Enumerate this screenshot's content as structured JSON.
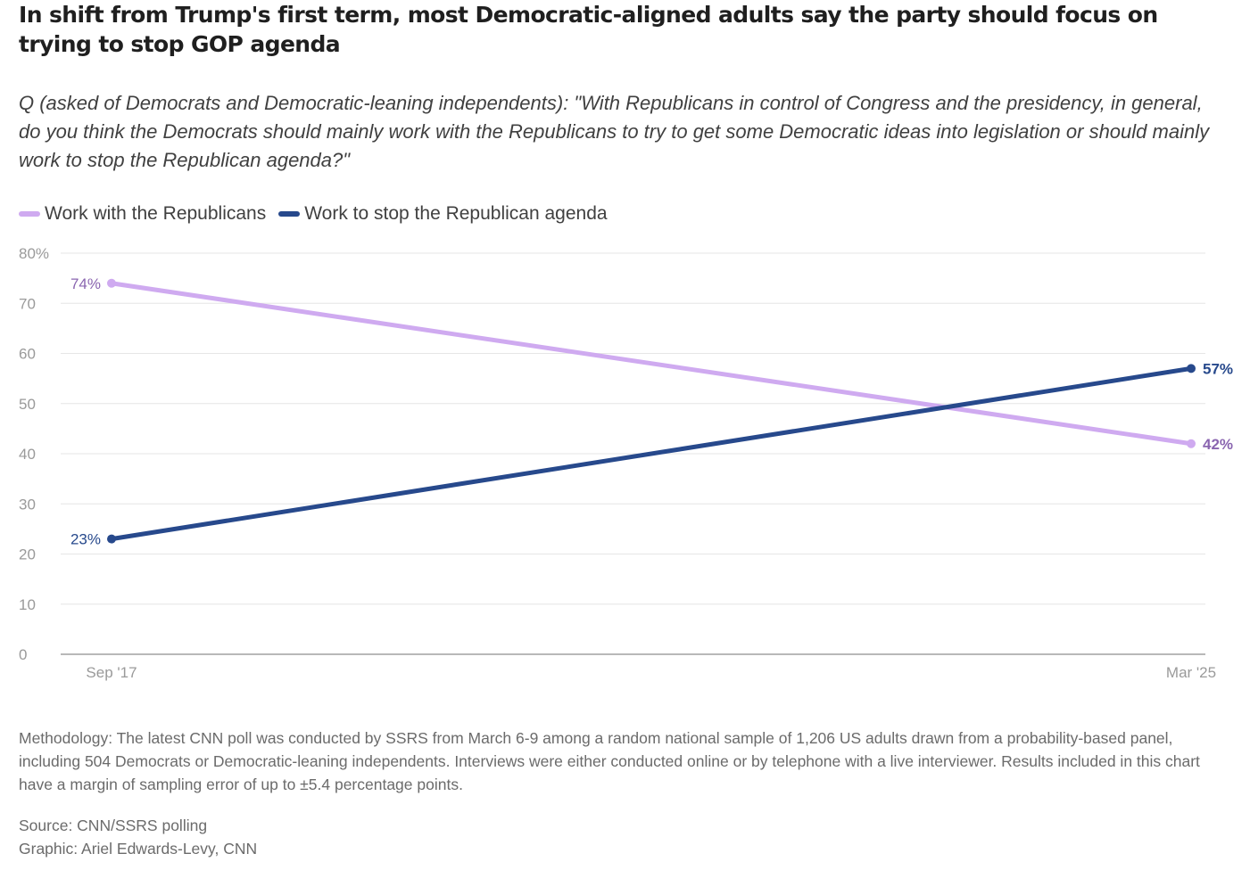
{
  "title": "In shift from Trump's first term, most Democratic-aligned adults say the party should focus on trying to stop GOP agenda",
  "subtitle": "Q (asked of Democrats and Democratic-leaning independents): \"With Republicans in control of Congress and the presidency, in general, do you think the Democrats should mainly work with the Republicans to try to get some Democratic ideas into legislation or should mainly work to stop the Republican agenda?\"",
  "legend": [
    {
      "label": "Work with the Republicans",
      "color": "#cfaaf0"
    },
    {
      "label": "Work to stop the Republican agenda",
      "color": "#27498c"
    }
  ],
  "chart_data": {
    "type": "line",
    "x": [
      "Sep '17",
      "Mar '25"
    ],
    "yticks": [
      "80%",
      "70",
      "60",
      "50",
      "40",
      "30",
      "20",
      "10",
      "0"
    ],
    "ylim": [
      0,
      80
    ],
    "grid": true,
    "series": [
      {
        "name": "Work with the Republicans",
        "values": [
          74,
          42
        ],
        "labels": [
          "74%",
          "42%"
        ],
        "color": "#cfaaf0",
        "label_color": "#8a65b0"
      },
      {
        "name": "Work to stop the Republican agenda",
        "values": [
          23,
          57
        ],
        "labels": [
          "23%",
          "57%"
        ],
        "color": "#27498c",
        "label_color": "#27498c"
      }
    ]
  },
  "methodology": "Methodology: The latest CNN poll was conducted by SSRS from March 6-9 among a random national sample of 1,206 US adults drawn from a probability-based panel, including 504 Democrats or Democratic-leaning independents. Interviews were either conducted online or by telephone with a live interviewer. Results included in this chart have a margin of sampling error of up to ±5.4 percentage points.",
  "source": "Source: CNN/SSRS polling",
  "credit": "Graphic: Ariel Edwards-Levy, CNN"
}
